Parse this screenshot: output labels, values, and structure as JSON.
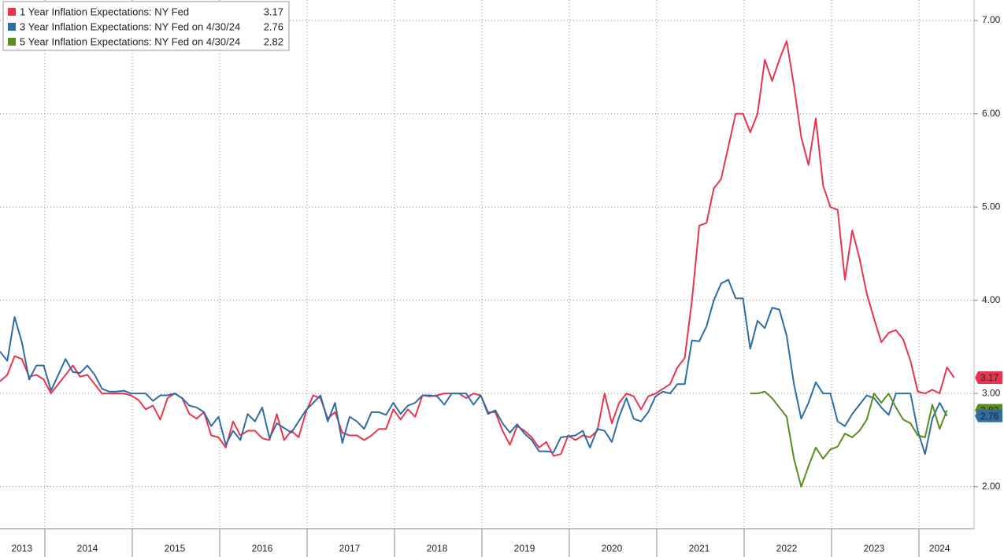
{
  "chart_data": {
    "type": "line",
    "categories": [
      null,
      null,
      null,
      "2013",
      null,
      null,
      null,
      null,
      null,
      null,
      null,
      null,
      "2014",
      null,
      null,
      null,
      null,
      null,
      null,
      null,
      null,
      null,
      null,
      null,
      "2015",
      null,
      null,
      null,
      null,
      null,
      null,
      null,
      null,
      null,
      null,
      null,
      "2016",
      null,
      null,
      null,
      null,
      null,
      null,
      null,
      null,
      null,
      null,
      null,
      "2017",
      null,
      null,
      null,
      null,
      null,
      null,
      null,
      null,
      null,
      null,
      null,
      "2018",
      null,
      null,
      null,
      null,
      null,
      null,
      null,
      null,
      null,
      null,
      null,
      "2019",
      null,
      null,
      null,
      null,
      null,
      null,
      null,
      null,
      null,
      null,
      null,
      "2020",
      null,
      null,
      null,
      null,
      null,
      null,
      null,
      null,
      null,
      null,
      null,
      "2021",
      null,
      null,
      null,
      null,
      null,
      null,
      null,
      null,
      null,
      null,
      null,
      "2022",
      null,
      null,
      null,
      null,
      null,
      null,
      null,
      null,
      null,
      null,
      null,
      "2023",
      null,
      null,
      null,
      null,
      null,
      null,
      null,
      null,
      "2024",
      null,
      null
    ],
    "series": [
      {
        "name": "1 Year Inflation Expectations: NY Fed",
        "last_label": "3.17",
        "color": "#e8344e",
        "values": [
          3.13,
          3.2,
          3.4,
          3.37,
          3.18,
          3.2,
          3.15,
          3.0,
          3.1,
          3.2,
          3.3,
          3.18,
          3.2,
          3.1,
          3.0,
          3.0,
          3.0,
          3.0,
          2.98,
          2.93,
          2.83,
          2.87,
          2.72,
          2.95,
          3.0,
          2.95,
          2.78,
          2.73,
          2.8,
          2.55,
          2.53,
          2.42,
          2.7,
          2.55,
          2.6,
          2.6,
          2.52,
          2.5,
          2.78,
          2.5,
          2.6,
          2.53,
          2.8,
          2.98,
          2.95,
          2.73,
          2.8,
          2.58,
          2.55,
          2.55,
          2.5,
          2.55,
          2.62,
          2.62,
          2.83,
          2.72,
          2.83,
          2.75,
          2.98,
          2.97,
          2.98,
          3.0,
          3.0,
          3.0,
          2.95,
          3.0,
          2.98,
          2.8,
          2.8,
          2.6,
          2.45,
          2.65,
          2.6,
          2.53,
          2.42,
          2.48,
          2.33,
          2.35,
          2.55,
          2.5,
          2.55,
          2.53,
          2.6,
          3.0,
          2.68,
          2.9,
          3.0,
          2.97,
          2.83,
          2.97,
          3.0,
          3.05,
          3.1,
          3.28,
          3.38,
          4.0,
          4.8,
          4.83,
          5.2,
          5.3,
          5.65,
          6.0,
          6.0,
          5.8,
          6.0,
          6.58,
          6.35,
          6.58,
          6.78,
          6.3,
          5.75,
          5.45,
          5.95,
          5.23,
          5.0,
          4.97,
          4.22,
          4.75,
          4.45,
          4.07,
          3.8,
          3.55,
          3.65,
          3.68,
          3.58,
          3.35,
          3.02,
          3.0,
          3.04,
          3.0,
          3.28,
          3.17
        ]
      },
      {
        "name": "3 Year Inflation Expectations: NY Fed on 4/30/24",
        "last_label": "2.76",
        "color": "#2e6da4",
        "values": [
          3.45,
          3.35,
          3.82,
          3.55,
          3.15,
          3.3,
          3.3,
          3.03,
          3.2,
          3.37,
          3.23,
          3.22,
          3.3,
          3.2,
          3.05,
          3.02,
          3.02,
          3.03,
          3.0,
          3.0,
          3.0,
          2.92,
          2.98,
          2.98,
          3.0,
          2.95,
          2.87,
          2.85,
          2.8,
          2.65,
          2.75,
          2.45,
          2.6,
          2.5,
          2.78,
          2.7,
          2.85,
          2.52,
          2.68,
          2.63,
          2.58,
          2.7,
          2.82,
          2.9,
          2.98,
          2.7,
          2.9,
          2.47,
          2.75,
          2.7,
          2.62,
          2.8,
          2.8,
          2.77,
          2.9,
          2.78,
          2.87,
          2.9,
          2.98,
          2.98,
          2.97,
          2.88,
          3.0,
          3.0,
          3.0,
          2.88,
          2.98,
          2.78,
          2.82,
          2.68,
          2.58,
          2.67,
          2.57,
          2.5,
          2.38,
          2.38,
          2.37,
          2.53,
          2.54,
          2.55,
          2.6,
          2.42,
          2.62,
          2.6,
          2.48,
          2.75,
          2.95,
          2.73,
          2.7,
          2.8,
          2.97,
          3.02,
          3.0,
          3.1,
          3.1,
          3.57,
          3.56,
          3.72,
          4.0,
          4.18,
          4.22,
          4.02,
          4.02,
          3.48,
          3.78,
          3.7,
          3.92,
          3.9,
          3.62,
          3.1,
          2.73,
          2.9,
          3.12,
          3.0,
          3.0,
          2.7,
          2.65,
          2.78,
          2.88,
          2.98,
          2.95,
          2.85,
          2.77,
          3.0,
          3.0,
          3.0,
          2.6,
          2.35,
          2.73,
          2.9,
          2.76,
          null
        ]
      },
      {
        "name": "5 Year Inflation Expectations: NY Fed on 4/30/24",
        "last_label": "2.82",
        "color": "#5b8c1e",
        "values": [
          null,
          null,
          null,
          null,
          null,
          null,
          null,
          null,
          null,
          null,
          null,
          null,
          null,
          null,
          null,
          null,
          null,
          null,
          null,
          null,
          null,
          null,
          null,
          null,
          null,
          null,
          null,
          null,
          null,
          null,
          null,
          null,
          null,
          null,
          null,
          null,
          null,
          null,
          null,
          null,
          null,
          null,
          null,
          null,
          null,
          null,
          null,
          null,
          null,
          null,
          null,
          null,
          null,
          null,
          null,
          null,
          null,
          null,
          null,
          null,
          null,
          null,
          null,
          null,
          null,
          null,
          null,
          null,
          null,
          null,
          null,
          null,
          null,
          null,
          null,
          null,
          null,
          null,
          null,
          null,
          null,
          null,
          null,
          null,
          null,
          null,
          null,
          null,
          null,
          null,
          null,
          null,
          null,
          null,
          null,
          null,
          null,
          null,
          null,
          null,
          null,
          null,
          null,
          3.0,
          3.0,
          3.02,
          2.95,
          2.85,
          2.75,
          2.3,
          2.0,
          2.22,
          2.42,
          2.3,
          2.4,
          2.43,
          2.57,
          2.53,
          2.6,
          2.72,
          3.0,
          2.9,
          3.0,
          2.85,
          2.72,
          2.68,
          2.55,
          2.53,
          2.88,
          2.62,
          2.82,
          null
        ]
      }
    ],
    "ylim": [
      1.55,
      7.22
    ],
    "yticks": [
      {
        "value": 2,
        "label": "2.00"
      },
      {
        "value": 3,
        "label": "3.00"
      },
      {
        "value": 4,
        "label": "4.00"
      },
      {
        "value": 5,
        "label": "5.00"
      },
      {
        "value": 6,
        "label": "6.00"
      },
      {
        "value": 7,
        "label": "7.00"
      }
    ],
    "grid": true,
    "legend": "upper left"
  }
}
